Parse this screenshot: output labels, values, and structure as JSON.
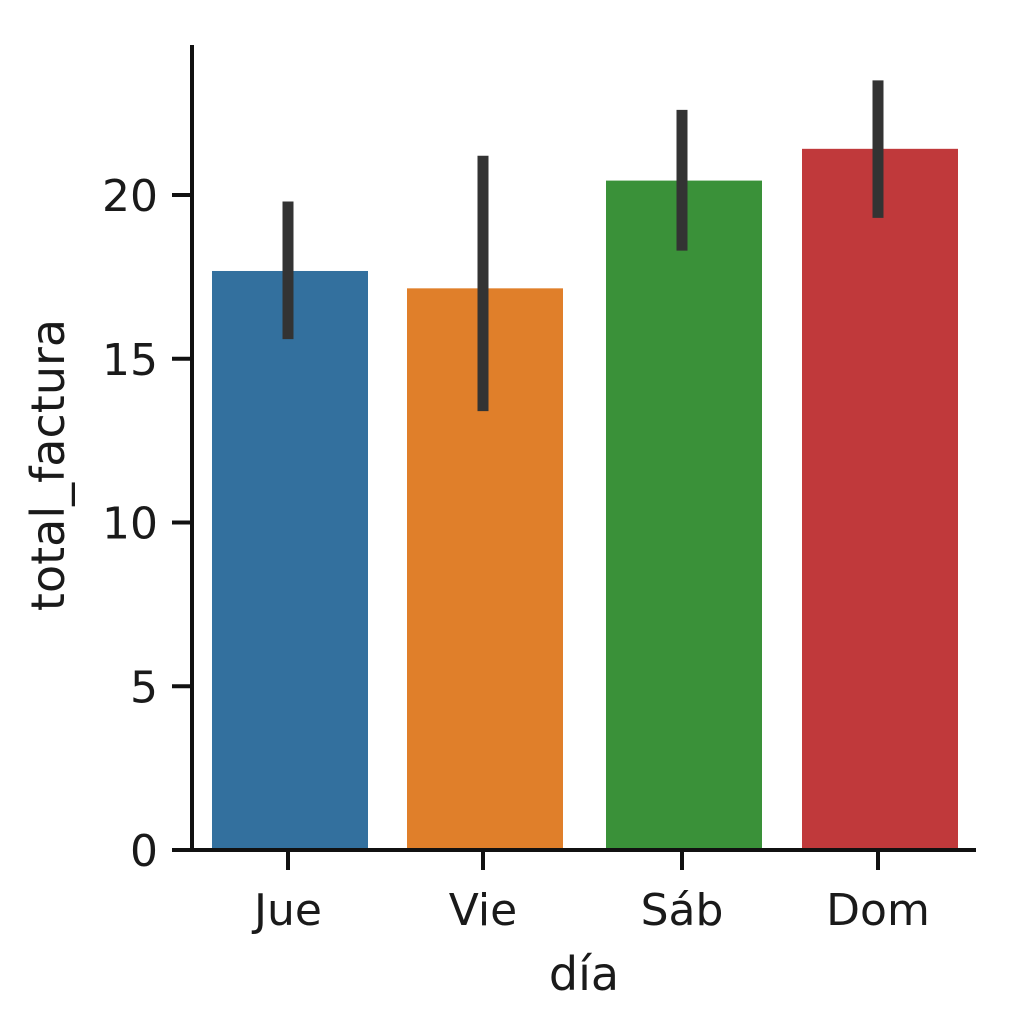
{
  "chart_data": {
    "type": "bar",
    "title": "",
    "xlabel": "día",
    "ylabel": "total_factura",
    "categories": [
      "Jue",
      "Vie",
      "Sáb",
      "Dom"
    ],
    "values": [
      17.68,
      17.15,
      20.44,
      21.41
    ],
    "error_bars": [
      {
        "low": 15.6,
        "high": 19.8
      },
      {
        "low": 13.4,
        "high": 21.2
      },
      {
        "low": 18.3,
        "high": 22.6
      },
      {
        "low": 19.3,
        "high": 23.5
      }
    ],
    "colors": [
      "#33709e",
      "#e07f2a",
      "#3a9139",
      "#c0393b"
    ],
    "error_color": "#333333",
    "yticks": [
      0,
      5,
      10,
      15,
      20
    ],
    "ytick_labels": [
      "0",
      "5",
      "10",
      "15",
      "20"
    ],
    "ylim": [
      0,
      24.6
    ],
    "grid": false,
    "legend": "none"
  }
}
